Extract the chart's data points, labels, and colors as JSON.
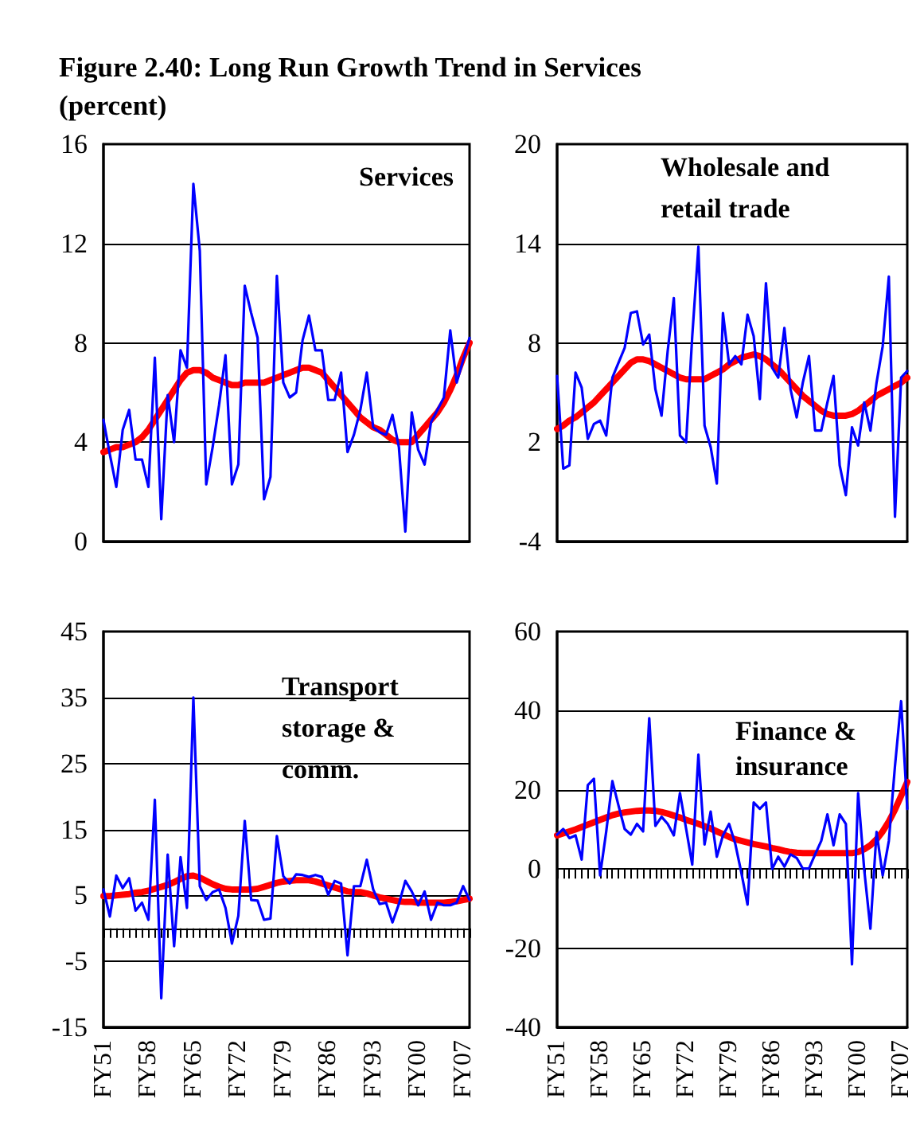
{
  "chart_data": [
    {
      "type": "line",
      "title": "Figure 2.40: Long Run Growth Trend in Services",
      "subtitle": "(percent)",
      "annotations": [
        "Services"
      ],
      "categories": [
        "FY51",
        null,
        null,
        null,
        null,
        null,
        null,
        "FY58",
        null,
        null,
        null,
        null,
        null,
        null,
        "FY65",
        null,
        null,
        null,
        null,
        null,
        null,
        "FY72",
        null,
        null,
        null,
        null,
        null,
        null,
        "FY79",
        null,
        null,
        null,
        null,
        null,
        null,
        "FY86",
        null,
        null,
        null,
        null,
        null,
        null,
        "FY93",
        null,
        null,
        null,
        null,
        null,
        null,
        "FY00",
        null,
        null,
        null,
        null,
        null,
        null,
        "FY07",
        null
      ],
      "series": [
        {
          "color": "#0000ff",
          "values": [
            4.9,
            3.5,
            2.2,
            4.5,
            5.3,
            3.3,
            3.3,
            2.2,
            7.4,
            0.9,
            5.9,
            4.0,
            7.7,
            7.0,
            14.4,
            11.7,
            2.3,
            3.8,
            5.5,
            7.5,
            2.3,
            3.1,
            10.3,
            9.2,
            8.2,
            1.7,
            2.6,
            10.7,
            6.4,
            5.8,
            6.0,
            8.1,
            9.1,
            7.7,
            7.7,
            5.7,
            5.7,
            6.8,
            3.6,
            4.3,
            5.3,
            6.8,
            4.6,
            4.4,
            4.3,
            5.1,
            3.8,
            0.4,
            5.2,
            3.7,
            3.1,
            4.8,
            5.3,
            5.8,
            8.5,
            6.4,
            7.3,
            8.2
          ]
        },
        {
          "color": "#ff0000",
          "values": [
            3.6,
            3.7,
            3.8,
            3.8,
            3.9,
            4.0,
            4.2,
            4.5,
            4.9,
            5.3,
            5.7,
            6.1,
            6.5,
            6.8,
            6.9,
            6.9,
            6.8,
            6.6,
            6.5,
            6.4,
            6.3,
            6.3,
            6.4,
            6.4,
            6.4,
            6.4,
            6.5,
            6.6,
            6.7,
            6.8,
            6.9,
            7.0,
            7.0,
            6.9,
            6.8,
            6.5,
            6.2,
            5.9,
            5.6,
            5.3,
            5.0,
            4.8,
            4.6,
            4.5,
            4.3,
            4.1,
            4.0,
            4.0,
            4.0,
            4.3,
            4.6,
            4.9,
            5.2,
            5.6,
            6.1,
            6.7,
            7.4,
            8.0
          ]
        }
      ],
      "ylim": [
        0,
        16
      ],
      "yticks": [
        0,
        4,
        8,
        12,
        16
      ],
      "grid": "y",
      "marker": "none",
      "tick_labels": "y"
    },
    {
      "type": "line",
      "annotations": [
        "Wholesale and retail trade"
      ],
      "categories": [
        "FY51",
        null,
        null,
        null,
        null,
        null,
        null,
        "FY58",
        null,
        null,
        null,
        null,
        null,
        null,
        "FY65",
        null,
        null,
        null,
        null,
        null,
        null,
        "FY72",
        null,
        null,
        null,
        null,
        null,
        null,
        "FY79",
        null,
        null,
        null,
        null,
        null,
        null,
        "FY86",
        null,
        null,
        null,
        null,
        null,
        null,
        "FY93",
        null,
        null,
        null,
        null,
        null,
        null,
        "FY00",
        null,
        null,
        null,
        null,
        null,
        null,
        "FY07",
        null
      ],
      "series": [
        {
          "color": "#0000ff",
          "values": [
            6.0,
            0.4,
            0.6,
            6.2,
            5.3,
            2.2,
            3.1,
            3.3,
            2.4,
            5.9,
            6.8,
            7.7,
            9.8,
            9.9,
            7.9,
            8.5,
            5.2,
            3.6,
            7.5,
            10.7,
            2.4,
            2.0,
            8.4,
            13.8,
            3.0,
            1.7,
            -0.5,
            9.8,
            6.7,
            7.2,
            6.7,
            9.7,
            8.4,
            4.6,
            11.6,
            6.5,
            5.9,
            8.9,
            5.2,
            3.5,
            5.6,
            7.2,
            2.7,
            2.7,
            4.4,
            6.0,
            0.6,
            -1.2,
            2.9,
            1.8,
            4.4,
            2.7,
            5.6,
            7.8,
            12.0,
            -2.5,
            5.9,
            6.3
          ]
        },
        {
          "color": "#ff0000",
          "values": [
            2.8,
            3.0,
            3.3,
            3.5,
            3.8,
            4.1,
            4.4,
            4.8,
            5.2,
            5.6,
            6.0,
            6.4,
            6.8,
            7.0,
            7.0,
            6.9,
            6.7,
            6.5,
            6.3,
            6.1,
            5.9,
            5.8,
            5.8,
            5.8,
            5.8,
            6.0,
            6.2,
            6.4,
            6.7,
            6.9,
            7.1,
            7.2,
            7.3,
            7.2,
            7.0,
            6.7,
            6.4,
            6.0,
            5.6,
            5.2,
            4.8,
            4.5,
            4.2,
            3.9,
            3.7,
            3.6,
            3.6,
            3.6,
            3.7,
            3.9,
            4.2,
            4.5,
            4.8,
            5.0,
            5.2,
            5.4,
            5.6,
            5.9
          ]
        }
      ],
      "ylim": [
        -4,
        20
      ],
      "yticks": [
        -4,
        2,
        8,
        14,
        20
      ],
      "grid": "y",
      "marker": "none",
      "tick_labels": "y"
    },
    {
      "type": "line",
      "annotations": [
        "Transport storage & comm."
      ],
      "categories": [
        "FY51",
        null,
        null,
        null,
        null,
        null,
        null,
        "FY58",
        null,
        null,
        null,
        null,
        null,
        null,
        "FY65",
        null,
        null,
        null,
        null,
        null,
        null,
        "FY72",
        null,
        null,
        null,
        null,
        null,
        null,
        "FY79",
        null,
        null,
        null,
        null,
        null,
        null,
        "FY86",
        null,
        null,
        null,
        null,
        null,
        null,
        "FY93",
        null,
        null,
        null,
        null,
        null,
        null,
        "FY00",
        null,
        null,
        null,
        null,
        null,
        null,
        "FY07",
        null
      ],
      "series": [
        {
          "color": "#0000ff",
          "values": [
            5.9,
            1.8,
            8.0,
            6.1,
            7.6,
            2.7,
            3.9,
            1.3,
            19.5,
            -10.6,
            11.2,
            -2.7,
            10.8,
            3.1,
            35,
            6.4,
            4.3,
            5.5,
            5.9,
            3.1,
            -2.3,
            1.9,
            16.3,
            4.3,
            4.2,
            1.3,
            1.5,
            14.0,
            7.9,
            6.8,
            8.2,
            8.1,
            7.8,
            8.1,
            7.8,
            5.1,
            7.2,
            6.8,
            -4.1,
            6.4,
            6.4,
            10.4,
            5.9,
            3.7,
            3.9,
            0.9,
            3.7,
            7.2,
            5.6,
            3.5,
            5.6,
            1.3,
            3.9,
            3.5,
            3.5,
            3.9,
            6.4,
            4.3
          ]
        },
        {
          "color": "#ff0000",
          "values": [
            4.9,
            4.9,
            5.0,
            5.1,
            5.2,
            5.4,
            5.5,
            5.7,
            6.0,
            6.3,
            6.6,
            7.0,
            7.5,
            7.9,
            8.0,
            7.7,
            7.2,
            6.7,
            6.3,
            6.0,
            5.9,
            5.9,
            5.9,
            5.9,
            6.0,
            6.3,
            6.6,
            6.9,
            7.1,
            7.2,
            7.3,
            7.3,
            7.3,
            7.1,
            6.8,
            6.5,
            6.2,
            5.9,
            5.6,
            5.5,
            5.5,
            5.3,
            5.0,
            4.7,
            4.5,
            4.3,
            4.1,
            4.0,
            4.0,
            3.9,
            3.9,
            3.9,
            3.9,
            3.9,
            4.0,
            4.1,
            4.3,
            4.5
          ]
        }
      ],
      "ylim": [
        -15,
        45
      ],
      "yticks": [
        -15,
        -5,
        5,
        15,
        25,
        35,
        45
      ],
      "grid": "y",
      "marker": "none"
    },
    {
      "type": "line",
      "annotations": [
        "Finance & insurance"
      ],
      "categories": [
        "FY51",
        null,
        null,
        null,
        null,
        null,
        null,
        "FY58",
        null,
        null,
        null,
        null,
        null,
        null,
        "FY65",
        null,
        null,
        null,
        null,
        null,
        null,
        "FY72",
        null,
        null,
        null,
        null,
        null,
        null,
        "FY79",
        null,
        null,
        null,
        null,
        null,
        null,
        "FY86",
        null,
        null,
        null,
        null,
        null,
        null,
        "FY93",
        null,
        null,
        null,
        null,
        null,
        null,
        "FY00",
        null,
        null,
        null,
        null,
        null,
        null,
        "FY07",
        null
      ],
      "series": [
        {
          "color": "#0000ff",
          "values": [
            8.7,
            10.1,
            7.8,
            8.5,
            2.4,
            21.2,
            22.8,
            -1.6,
            9.5,
            22.2,
            16.0,
            10.1,
            8.7,
            11.4,
            9.5,
            38.1,
            10.9,
            13.2,
            11.4,
            8.5,
            19.2,
            10.2,
            1.1,
            28.9,
            6.2,
            14.5,
            3.1,
            8.5,
            11.4,
            6.4,
            -1.0,
            -9.0,
            16.8,
            15.2,
            16.8,
            0.0,
            3.1,
            0.6,
            3.7,
            2.8,
            0.1,
            0.1,
            3.7,
            7.1,
            13.8,
            6.0,
            13.8,
            11.4,
            -24.1,
            19.2,
            -0.3,
            -15.1,
            9.4,
            -1.6,
            7.1,
            26.0,
            42.4,
            15.2
          ]
        },
        {
          "color": "#ff0000",
          "values": [
            8.5,
            9.0,
            9.5,
            10.0,
            10.6,
            11.2,
            11.8,
            12.4,
            13.0,
            13.6,
            14.0,
            14.3,
            14.5,
            14.7,
            14.8,
            14.8,
            14.7,
            14.4,
            14.0,
            13.5,
            13.0,
            12.4,
            11.9,
            11.4,
            10.8,
            10.2,
            9.5,
            8.8,
            8.1,
            7.5,
            7.1,
            6.7,
            6.3,
            6.0,
            5.7,
            5.3,
            5.0,
            4.6,
            4.3,
            4.1,
            4.0,
            4.0,
            4.0,
            4.0,
            4.0,
            4.0,
            4.0,
            4.0,
            4.0,
            4.3,
            5.0,
            6.0,
            7.5,
            9.5,
            12.0,
            15.0,
            18.5,
            22.0
          ]
        }
      ],
      "ylim": [
        -40,
        60
      ],
      "yticks": [
        -40,
        -20,
        0,
        20,
        40,
        60
      ],
      "grid": "y",
      "marker": "none"
    }
  ]
}
